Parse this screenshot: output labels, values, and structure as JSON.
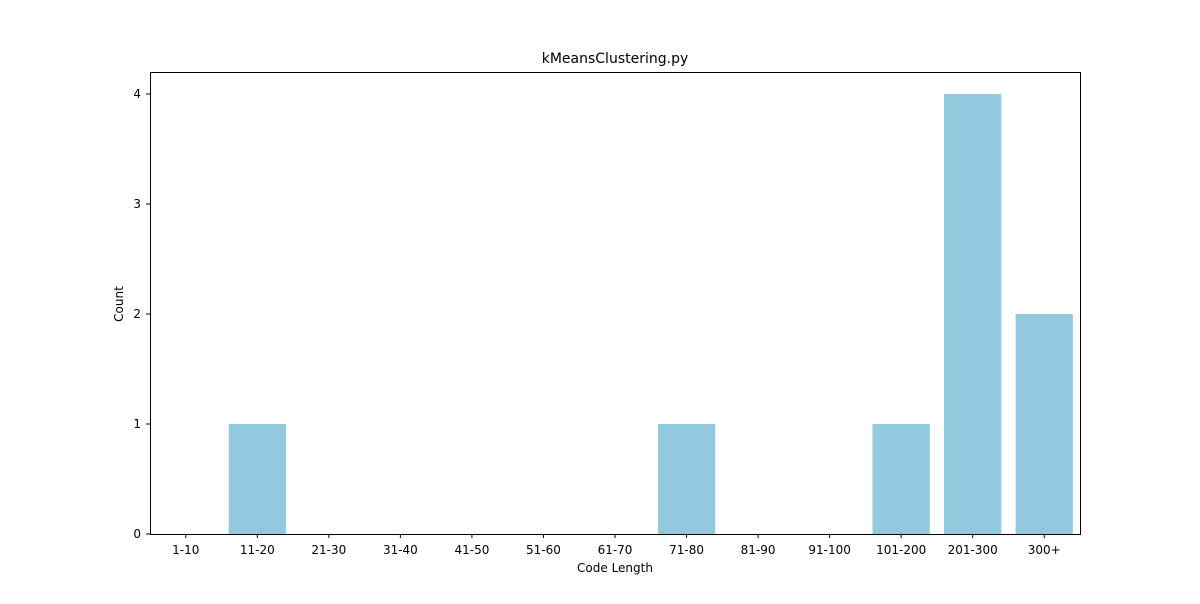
{
  "chart_data": {
    "type": "bar",
    "title": "kMeansClustering.py",
    "xlabel": "Code Length",
    "ylabel": "Count",
    "categories": [
      "1-10",
      "11-20",
      "21-30",
      "31-40",
      "41-50",
      "51-60",
      "61-70",
      "71-80",
      "81-90",
      "91-100",
      "101-200",
      "201-300",
      "300+"
    ],
    "values": [
      0,
      1,
      0,
      0,
      0,
      0,
      0,
      1,
      0,
      0,
      1,
      4,
      2
    ],
    "yticks": [
      0,
      1,
      2,
      3,
      4
    ],
    "ylim": [
      0,
      4.2
    ],
    "bar_color": "#92c9de",
    "grid": false,
    "legend": false
  }
}
